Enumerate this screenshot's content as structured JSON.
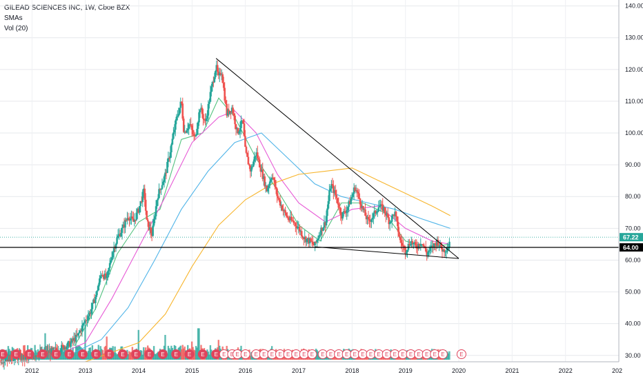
{
  "legend": {
    "title": "GILEAD SCIENCES INC, 1W, Cboe BZX",
    "sma": "SMAs",
    "vol": "Vol (20)"
  },
  "colors": {
    "up": "#26a69a",
    "down": "#ef5350",
    "sma_short": "#53c27f",
    "sma_mid": "#e75ad6",
    "sma_long": "#4fb4e8",
    "sma_200": "#f7b52c",
    "trendline": "#000000",
    "price_badge": "#26a69a",
    "level_badge": "#000000",
    "earnings": "#e0445c"
  },
  "chart_data": {
    "type": "candlestick",
    "title": "GILEAD SCIENCES INC, 1W, Cboe BZX",
    "x_ticks": [
      "2012",
      "2013",
      "2014",
      "2015",
      "2016",
      "2017",
      "2018",
      "2019",
      "2020",
      "2021",
      "2022",
      "202"
    ],
    "x_range": [
      2011.4,
      2023.0
    ],
    "y_ticks": [
      "30.00",
      "40.00",
      "50.00",
      "60.00",
      "70.00",
      "80.00",
      "90.00",
      "100.00",
      "110.00",
      "120.00",
      "130.00",
      "140.00"
    ],
    "y_range": [
      28,
      141
    ],
    "price_path": [
      [
        2011.4,
        28.5
      ],
      [
        2011.7,
        29.5
      ],
      [
        2011.9,
        29
      ],
      [
        2012.1,
        30.5
      ],
      [
        2012.3,
        31
      ],
      [
        2012.5,
        32
      ],
      [
        2012.7,
        33.5
      ],
      [
        2012.85,
        36
      ],
      [
        2013.0,
        41
      ],
      [
        2013.1,
        44
      ],
      [
        2013.2,
        49
      ],
      [
        2013.3,
        56
      ],
      [
        2013.4,
        54
      ],
      [
        2013.5,
        62
      ],
      [
        2013.6,
        67
      ],
      [
        2013.7,
        70
      ],
      [
        2013.8,
        74
      ],
      [
        2013.9,
        72
      ],
      [
        2014.0,
        76
      ],
      [
        2014.1,
        82
      ],
      [
        2014.15,
        72
      ],
      [
        2014.25,
        68
      ],
      [
        2014.35,
        80
      ],
      [
        2014.5,
        87
      ],
      [
        2014.6,
        95
      ],
      [
        2014.7,
        104
      ],
      [
        2014.8,
        110
      ],
      [
        2014.85,
        100
      ],
      [
        2014.95,
        103
      ],
      [
        2015.05,
        98
      ],
      [
        2015.15,
        108
      ],
      [
        2015.25,
        103
      ],
      [
        2015.35,
        113
      ],
      [
        2015.45,
        121
      ],
      [
        2015.5,
        117
      ],
      [
        2015.55,
        120
      ],
      [
        2015.65,
        106
      ],
      [
        2015.75,
        108
      ],
      [
        2015.85,
        100
      ],
      [
        2015.95,
        104
      ],
      [
        2016.0,
        94
      ],
      [
        2016.1,
        88
      ],
      [
        2016.2,
        94
      ],
      [
        2016.3,
        88
      ],
      [
        2016.4,
        82
      ],
      [
        2016.5,
        87
      ],
      [
        2016.6,
        80
      ],
      [
        2016.7,
        76
      ],
      [
        2016.8,
        73
      ],
      [
        2016.9,
        72
      ],
      [
        2017.0,
        70
      ],
      [
        2017.1,
        67
      ],
      [
        2017.2,
        66
      ],
      [
        2017.3,
        64.5
      ],
      [
        2017.4,
        69
      ],
      [
        2017.5,
        72
      ],
      [
        2017.6,
        84
      ],
      [
        2017.7,
        80
      ],
      [
        2017.8,
        74
      ],
      [
        2017.9,
        76
      ],
      [
        2018.0,
        80
      ],
      [
        2018.05,
        83
      ],
      [
        2018.1,
        81
      ],
      [
        2018.2,
        76
      ],
      [
        2018.3,
        72
      ],
      [
        2018.4,
        74
      ],
      [
        2018.5,
        77
      ],
      [
        2018.6,
        76
      ],
      [
        2018.7,
        72
      ],
      [
        2018.8,
        75
      ],
      [
        2018.9,
        66
      ],
      [
        2019.0,
        63
      ],
      [
        2019.1,
        66
      ],
      [
        2019.2,
        64
      ],
      [
        2019.3,
        66
      ],
      [
        2019.4,
        62
      ],
      [
        2019.5,
        64
      ],
      [
        2019.6,
        66
      ],
      [
        2019.7,
        63
      ],
      [
        2019.8,
        64
      ],
      [
        2019.84,
        67.22
      ]
    ],
    "sma_lines": [
      {
        "key": "sma_short",
        "points": [
          [
            2012.8,
            33
          ],
          [
            2013.2,
            45
          ],
          [
            2013.6,
            62
          ],
          [
            2014.0,
            72
          ],
          [
            2014.4,
            76
          ],
          [
            2014.8,
            98
          ],
          [
            2015.2,
            100
          ],
          [
            2015.5,
            111
          ],
          [
            2015.8,
            105
          ],
          [
            2016.2,
            92
          ],
          [
            2016.6,
            82
          ],
          [
            2017.0,
            71
          ],
          [
            2017.4,
            66
          ],
          [
            2017.8,
            78
          ],
          [
            2018.2,
            78
          ],
          [
            2018.6,
            75
          ],
          [
            2019.0,
            66
          ],
          [
            2019.4,
            64
          ],
          [
            2019.84,
            65
          ]
        ]
      },
      {
        "key": "sma_mid",
        "points": [
          [
            2012.6,
            31
          ],
          [
            2013.0,
            34
          ],
          [
            2013.5,
            48
          ],
          [
            2014.0,
            64
          ],
          [
            2014.5,
            80
          ],
          [
            2015.0,
            97
          ],
          [
            2015.5,
            105
          ],
          [
            2015.8,
            107
          ],
          [
            2016.2,
            100
          ],
          [
            2016.6,
            87
          ],
          [
            2017.0,
            78
          ],
          [
            2017.5,
            72
          ],
          [
            2018.0,
            76
          ],
          [
            2018.5,
            77
          ],
          [
            2019.0,
            70
          ],
          [
            2019.5,
            66
          ],
          [
            2019.84,
            65
          ]
        ]
      },
      {
        "key": "sma_long",
        "points": [
          [
            2012.8,
            31
          ],
          [
            2013.3,
            35
          ],
          [
            2013.8,
            45
          ],
          [
            2014.3,
            60
          ],
          [
            2014.8,
            76
          ],
          [
            2015.3,
            88
          ],
          [
            2015.8,
            97
          ],
          [
            2016.3,
            100
          ],
          [
            2016.8,
            92
          ],
          [
            2017.3,
            84
          ],
          [
            2017.8,
            80
          ],
          [
            2018.3,
            78
          ],
          [
            2018.8,
            76
          ],
          [
            2019.3,
            73
          ],
          [
            2019.84,
            70
          ]
        ]
      },
      {
        "key": "sma_200",
        "points": [
          [
            2013.0,
            28
          ],
          [
            2014.0,
            34
          ],
          [
            2014.5,
            43
          ],
          [
            2015.0,
            58
          ],
          [
            2015.5,
            71
          ],
          [
            2016.0,
            79
          ],
          [
            2016.5,
            84
          ],
          [
            2017.0,
            87
          ],
          [
            2017.5,
            88
          ],
          [
            2018.0,
            89
          ],
          [
            2018.5,
            85
          ],
          [
            2019.0,
            81
          ],
          [
            2019.5,
            77
          ],
          [
            2019.84,
            74
          ]
        ]
      }
    ],
    "trendlines": [
      {
        "from": [
          2015.45,
          123.5
        ],
        "to": [
          2020.0,
          60.5
        ]
      },
      {
        "from": [
          2017.3,
          64.2
        ],
        "to": [
          2020.0,
          60.5
        ]
      }
    ],
    "horizontal_level": 64.0,
    "badges": [
      {
        "label": "67.22",
        "value": 67.22,
        "style": "price"
      },
      {
        "label": "64.00",
        "value": 64.0,
        "style": "level"
      }
    ],
    "earnings_marker": "E",
    "earnings_dates": [
      2011.45,
      2011.7,
      2011.95,
      2012.2,
      2012.45,
      2012.7,
      2012.95,
      2013.2,
      2013.45,
      2013.7,
      2013.95,
      2014.2,
      2014.45,
      2014.7,
      2014.95,
      2015.2,
      2015.45,
      2015.6,
      2015.75,
      2015.85,
      2016.0,
      2016.2,
      2016.35,
      2016.5,
      2016.65,
      2016.8,
      2016.95,
      2017.1,
      2017.25,
      2017.45,
      2017.6,
      2017.75,
      2017.9,
      2018.05,
      2018.2,
      2018.35,
      2018.5,
      2018.65,
      2018.8,
      2018.95,
      2019.1,
      2019.25,
      2019.4,
      2019.55,
      2019.7,
      2020.05
    ],
    "volume": {
      "axis_range": [
        0,
        80
      ],
      "typical": 12,
      "spikes": [
        [
          2012.25,
          32
        ],
        [
          2013.0,
          40
        ],
        [
          2013.4,
          28
        ],
        [
          2014.0,
          36
        ],
        [
          2014.5,
          30
        ],
        [
          2015.0,
          22
        ],
        [
          2015.12,
          38
        ],
        [
          2015.5,
          24
        ],
        [
          2016.5,
          22
        ],
        [
          2017.1,
          18
        ],
        [
          2018.0,
          16
        ],
        [
          2018.95,
          14
        ]
      ]
    }
  }
}
